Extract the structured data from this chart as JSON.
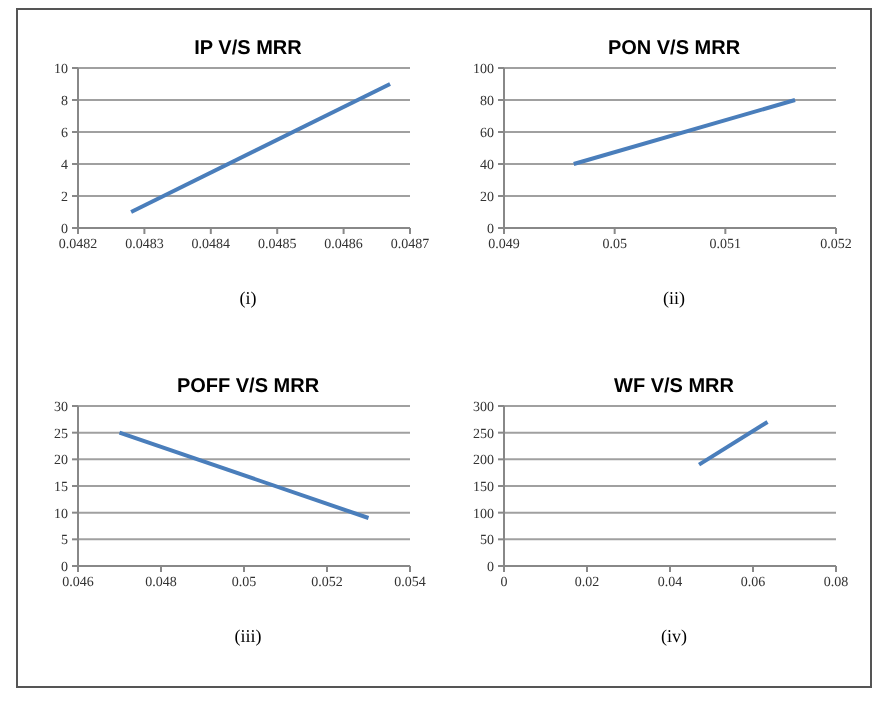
{
  "chart_data": [
    {
      "type": "line",
      "title": "IP V/S MRR",
      "x": [
        0.04828,
        0.04867
      ],
      "series": [
        {
          "color": "#4a7ebb",
          "values": [
            1,
            9
          ]
        }
      ],
      "xlim": [
        0.0482,
        0.0487
      ],
      "xticks": [
        0.0482,
        0.0483,
        0.0484,
        0.0485,
        0.0486,
        0.0487
      ],
      "ylim": [
        0,
        10
      ],
      "yticks": [
        0,
        2,
        4,
        6,
        8,
        10
      ],
      "grid": "y",
      "marker": "none",
      "annotations": [
        "(i)"
      ]
    },
    {
      "type": "line",
      "title": "PON V/S MRR",
      "x": [
        0.04963,
        0.05163
      ],
      "series": [
        {
          "color": "#4a7ebb",
          "values": [
            40,
            80
          ]
        }
      ],
      "xlim": [
        0.049,
        0.052
      ],
      "xticks": [
        0.049,
        0.05,
        0.051,
        0.052
      ],
      "ylim": [
        0,
        100
      ],
      "yticks": [
        0,
        20,
        40,
        60,
        80,
        100
      ],
      "grid": "y",
      "marker": "none",
      "annotations": [
        "(ii)"
      ]
    },
    {
      "type": "line",
      "title": "POFF V/S MRR",
      "x": [
        0.047,
        0.053
      ],
      "series": [
        {
          "color": "#4a7ebb",
          "values": [
            25,
            9
          ]
        }
      ],
      "xlim": [
        0.046,
        0.054
      ],
      "xticks": [
        0.046,
        0.048,
        0.05,
        0.052,
        0.054
      ],
      "ylim": [
        0,
        30
      ],
      "yticks": [
        0,
        5,
        10,
        15,
        20,
        25,
        30
      ],
      "grid": "y",
      "marker": "none",
      "annotations": [
        "(iii)"
      ]
    },
    {
      "type": "line",
      "title": "WF V/S MRR",
      "x": [
        0.047,
        0.0635
      ],
      "series": [
        {
          "color": "#4a7ebb",
          "values": [
            190,
            270
          ]
        }
      ],
      "xlim": [
        0,
        0.08
      ],
      "xticks": [
        0,
        0.02,
        0.04,
        0.06,
        0.08
      ],
      "ylim": [
        0,
        300
      ],
      "yticks": [
        0,
        50,
        100,
        150,
        200,
        250,
        300
      ],
      "grid": "y",
      "marker": "none",
      "annotations": [
        "(iv)"
      ]
    }
  ]
}
